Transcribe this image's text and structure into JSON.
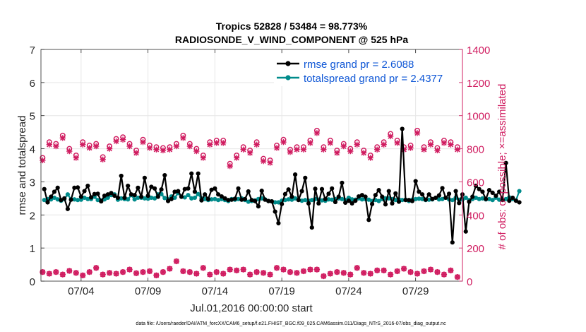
{
  "chart_data": {
    "type": "line",
    "title_line1": "Tropics 52828 / 53484 = 98.773%",
    "title_line2": "RADIOSONDE_V_WIND_COMPONENT @ 525 hPa",
    "xlabel": "Jul.01,2016 00:00:00 start",
    "ylabel_left": "rmse and totalspread",
    "ylabel_right": "# of obs: o=possible; ×=assimilated",
    "xlim": [
      0,
      31.5
    ],
    "ylim_left": [
      0,
      7
    ],
    "ylim_right": [
      0,
      1400
    ],
    "grid": true,
    "legend_position": "top-right",
    "x_tick_values": [
      3,
      8,
      13,
      18,
      23,
      28
    ],
    "x_tick_labels": [
      "07/04",
      "07/09",
      "07/14",
      "07/19",
      "07/24",
      "07/29"
    ],
    "y_left_ticks": [
      "0",
      "1",
      "2",
      "3",
      "4",
      "5",
      "6",
      "7"
    ],
    "y_right_ticks": [
      "0",
      "200",
      "400",
      "600",
      "800",
      "1000",
      "1200",
      "1400"
    ],
    "series": [
      {
        "name": "rmse grand pr = 2.6088",
        "axis": "left",
        "color": "#000000",
        "x_start": 0.25,
        "x_step": 0.25,
        "values": [
          2.78,
          2.38,
          2.55,
          2.7,
          2.82,
          2.45,
          2.5,
          2.18,
          2.46,
          2.82,
          2.83,
          2.55,
          2.72,
          2.88,
          2.53,
          2.63,
          2.64,
          2.41,
          2.58,
          2.62,
          2.66,
          2.58,
          2.52,
          3.18,
          2.52,
          2.88,
          2.62,
          2.6,
          2.82,
          2.55,
          3.12,
          2.58,
          2.85,
          2.8,
          2.55,
          2.77,
          3.2,
          2.42,
          2.48,
          2.7,
          2.72,
          2.55,
          2.78,
          2.8,
          3.25,
          2.7,
          3.25,
          2.44,
          2.62,
          2.48,
          2.76,
          2.8,
          2.62,
          2.56,
          2.5,
          2.45,
          2.46,
          2.49,
          2.8,
          2.46,
          2.48,
          2.71,
          2.45,
          2.42,
          2.26,
          2.73,
          2.46,
          2.42,
          2.41,
          2.1,
          1.75,
          2.33,
          2.63,
          2.77,
          2.55,
          3.22,
          2.45,
          2.72,
          3.12,
          2.35,
          1.62,
          2.79,
          2.35,
          2.78,
          2.48,
          2.64,
          2.8,
          2.39,
          2.55,
          2.97,
          2.37,
          2.43,
          2.35,
          2.43,
          2.56,
          2.6,
          2.55,
          1.85,
          2.33,
          2.6,
          2.75,
          2.55,
          2.32,
          2.72,
          2.35,
          2.65,
          2.4,
          4.6,
          2.45,
          2.45,
          2.42,
          3.02,
          2.7,
          2.62,
          2.46,
          2.62,
          2.48,
          2.52,
          2.59,
          2.81,
          2.52,
          2.64,
          1.17,
          2.72,
          2.36,
          2.62,
          1.5,
          2.4,
          2.55,
          2.88,
          2.78,
          2.7,
          2.48,
          2.75,
          2.67,
          2.58,
          2.7,
          2.45,
          3.57,
          2.43,
          2.52,
          2.43,
          2.38
        ]
      },
      {
        "name": "totalspread grand pr = 2.4377",
        "axis": "left",
        "color": "#008b8b",
        "x_start": 0.25,
        "x_step": 0.25,
        "values": [
          2.45,
          2.48,
          2.47,
          2.52,
          2.47,
          2.43,
          2.48,
          2.62,
          2.47,
          2.47,
          2.45,
          2.46,
          2.52,
          2.48,
          2.48,
          2.55,
          2.45,
          2.44,
          2.47,
          2.52,
          2.6,
          2.62,
          2.46,
          2.5,
          2.48,
          2.47,
          2.6,
          2.47,
          2.52,
          2.52,
          2.5,
          2.49,
          2.52,
          2.5,
          2.62,
          2.63,
          2.51,
          2.47,
          2.56,
          2.52,
          2.66,
          2.55,
          2.53,
          2.6,
          2.5,
          2.52,
          2.63,
          2.5,
          2.48,
          2.45,
          2.47,
          2.48,
          2.45,
          2.48,
          2.45,
          2.42,
          2.48,
          2.46,
          2.48,
          2.5,
          2.45,
          2.4,
          2.42,
          2.44,
          2.48,
          2.5,
          2.47,
          2.42,
          2.41,
          2.38,
          2.38,
          2.43,
          2.45,
          2.47,
          2.46,
          2.5,
          2.46,
          2.43,
          2.45,
          2.43,
          2.45,
          2.48,
          2.46,
          2.44,
          2.43,
          2.47,
          2.46,
          2.48,
          2.5,
          2.48,
          2.45,
          2.52,
          2.47,
          2.46,
          2.5,
          2.47,
          2.48,
          2.46,
          2.42,
          2.45,
          2.42,
          2.48,
          2.5,
          2.5,
          2.48,
          2.45,
          2.47,
          2.45,
          2.46,
          2.42,
          2.46,
          2.48,
          2.49,
          2.48,
          2.45,
          2.46,
          2.47,
          2.52,
          2.47,
          2.48,
          2.52,
          2.47,
          2.45,
          2.52,
          2.46,
          2.46,
          2.52,
          2.45,
          2.48,
          2.52,
          2.48,
          2.5,
          2.47,
          2.48,
          2.45,
          2.52,
          2.46,
          2.46,
          2.48,
          2.53,
          2.48,
          2.44,
          2.72
        ]
      },
      {
        "name": "possible (o)",
        "axis": "right",
        "color": "#d01c60",
        "x_start": 0.125,
        "x_step": 0.5,
        "values": [
          55,
          45,
          55,
          40,
          62,
          50,
          35,
          55,
          80,
          40,
          50,
          45,
          55,
          70,
          48,
          55,
          60,
          35,
          55,
          75,
          120,
          60,
          55,
          45,
          80,
          40,
          55,
          45,
          70,
          65,
          70,
          40,
          55,
          50,
          40,
          80,
          70,
          55,
          50,
          60,
          70,
          70,
          30,
          45,
          55,
          50,
          40,
          80,
          50,
          45,
          65,
          65,
          40,
          60,
          75,
          55,
          45,
          60,
          70,
          55,
          40,
          65,
          25
        ],
        "values_upper": [
          745,
          840,
          830,
          880,
          800,
          760,
          840,
          820,
          830,
          750,
          815,
          860,
          870,
          830,
          790,
          855,
          820,
          810,
          805,
          810,
          830,
          880,
          830,
          800,
          760,
          840,
          850,
          850,
          710,
          760,
          810,
          790,
          840,
          740,
          730,
          820,
          855,
          795,
          810,
          810,
          850,
          910,
          810,
          850,
          790,
          830,
          800,
          840,
          790,
          760,
          810,
          840,
          890,
          850,
          810,
          820,
          910,
          810,
          840,
          805,
          850,
          840,
          810
        ]
      },
      {
        "name": "assimilated (×)",
        "axis": "right",
        "color": "#d01c60",
        "x_start": 0.125,
        "x_step": 0.5,
        "values": [
          55,
          45,
          55,
          40,
          62,
          50,
          35,
          55,
          80,
          40,
          50,
          45,
          55,
          70,
          48,
          55,
          60,
          35,
          55,
          75,
          120,
          60,
          55,
          45,
          80,
          40,
          55,
          45,
          70,
          65,
          70,
          40,
          55,
          50,
          40,
          80,
          70,
          55,
          50,
          60,
          70,
          70,
          30,
          45,
          55,
          50,
          40,
          80,
          50,
          45,
          65,
          65,
          40,
          60,
          75,
          55,
          45,
          60,
          70,
          55,
          40,
          65,
          25
        ],
        "values_upper": [
          730,
          825,
          815,
          865,
          785,
          745,
          825,
          805,
          815,
          735,
          800,
          845,
          855,
          815,
          775,
          840,
          805,
          795,
          790,
          795,
          815,
          865,
          815,
          785,
          745,
          825,
          835,
          835,
          695,
          745,
          795,
          775,
          825,
          725,
          715,
          805,
          840,
          780,
          795,
          795,
          835,
          895,
          795,
          835,
          775,
          815,
          785,
          825,
          775,
          745,
          795,
          825,
          875,
          835,
          795,
          805,
          895,
          795,
          825,
          790,
          835,
          825,
          795
        ]
      }
    ]
  },
  "footer": "data file: /Users/raeder/DAI/ATM_forcXX/CAM6_setup/f.e21.FHIST_BGC.f09_025.CAM6assim.011/Diags_NTrS_2016-07/obs_diag_output.nc"
}
